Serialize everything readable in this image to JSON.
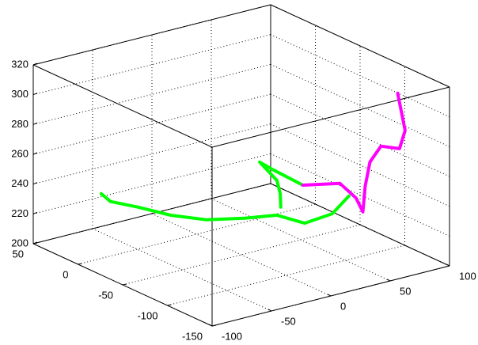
{
  "chart_data": {
    "type": "line3d",
    "xlim": [
      -100,
      100
    ],
    "xticks": [
      -100,
      -50,
      0,
      50,
      100
    ],
    "ylim": [
      -150,
      50
    ],
    "yticks": [
      -150,
      -100,
      -50,
      0,
      50
    ],
    "zlim": [
      200,
      320
    ],
    "zticks": [
      200,
      220,
      240,
      260,
      280,
      300,
      320
    ],
    "grid": true,
    "series": [
      {
        "color": "#00ff00",
        "x": [
          -48,
          -47,
          -35,
          -18,
          1,
          24,
          45,
          54,
          75,
          89,
          null,
          46,
          44,
          42,
          35,
          42,
          54
        ],
        "y": [
          43,
          34,
          19,
          5,
          -9,
          -22,
          -30,
          -49,
          -52,
          -52,
          null,
          -33,
          -35,
          -34,
          -24,
          -30,
          -47
        ],
        "z": [
          225,
          222,
          220,
          215,
          212,
          212,
          212,
          210,
          213,
          222,
          null,
          218,
          228,
          237,
          248,
          243,
          235
        ]
      },
      {
        "color": "#ff00ff",
        "x": [
          54,
          71,
          80,
          85,
          87,
          88,
          95,
          88,
          95,
          91
        ],
        "y": [
          -47,
          -66,
          -72,
          -73,
          -73,
          -77,
          -80,
          -110,
          -107,
          -104
        ],
        "z": [
          235,
          238,
          228,
          218,
          235,
          252,
          262,
          270,
          280,
          305
        ]
      }
    ]
  }
}
